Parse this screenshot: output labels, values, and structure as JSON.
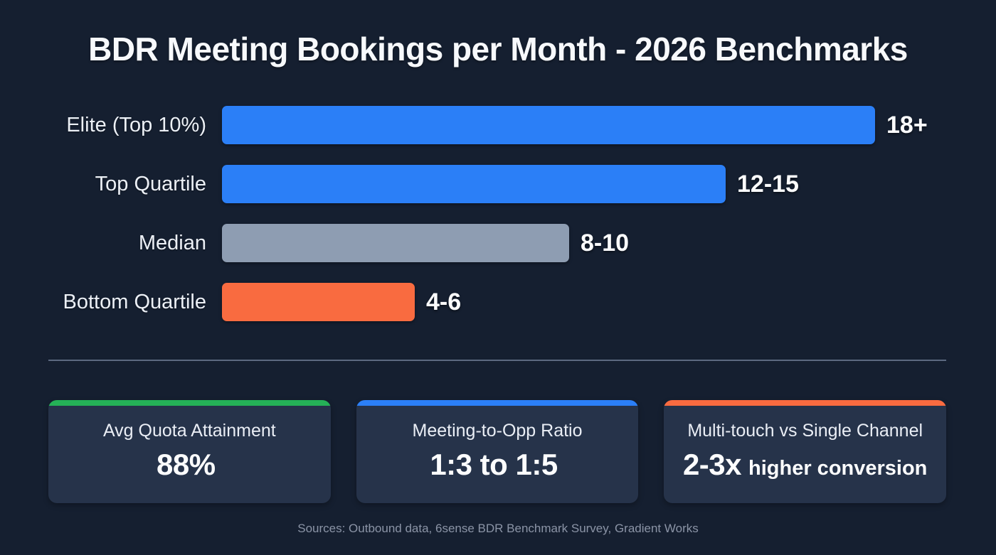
{
  "title": "BDR Meeting Bookings per Month - 2026 Benchmarks",
  "chart_data": {
    "type": "bar",
    "orientation": "horizontal",
    "title": "BDR Meeting Bookings per Month - 2026 Benchmarks",
    "categories": [
      "Elite (Top 10%)",
      "Top Quartile",
      "Median",
      "Bottom Quartile"
    ],
    "value_labels": [
      "18+",
      "12-15",
      "8-10",
      "4-6"
    ],
    "values_numeric_est": [
      18,
      14,
      9.5,
      5.3
    ],
    "bar_width_pct": [
      100,
      77.1,
      53.2,
      29.5
    ],
    "bar_colors": [
      "#2b7ff7",
      "#2b7ff7",
      "#8e9db2",
      "#f96b40"
    ],
    "xlim": [
      0,
      18
    ],
    "grid": false,
    "legend": "none",
    "xlabel": "",
    "ylabel": ""
  },
  "stat_cards": [
    {
      "label": "Avg Quota Attainment",
      "value": "88%",
      "suffix": "",
      "accent_color": "#25b157"
    },
    {
      "label": "Meeting-to-Opp Ratio",
      "value": "1:3 to 1:5",
      "suffix": "",
      "accent_color": "#2b7ff7"
    },
    {
      "label": "Multi-touch vs Single Channel",
      "value": "2-3x",
      "suffix": "higher conversion",
      "accent_color": "#f96b40"
    }
  ],
  "footer": {
    "sources": "Sources: Outbound data, 6sense BDR Benchmark Survey, Gradient Works"
  },
  "colors": {
    "background": "#151f30",
    "card_background": "#26334a",
    "blue": "#2b7ff7",
    "gray": "#8e9db2",
    "orange": "#f96b40",
    "green": "#25b157",
    "divider": "#5c6980",
    "text_primary": "#f7f9fc",
    "text_muted": "#8b94a6"
  }
}
